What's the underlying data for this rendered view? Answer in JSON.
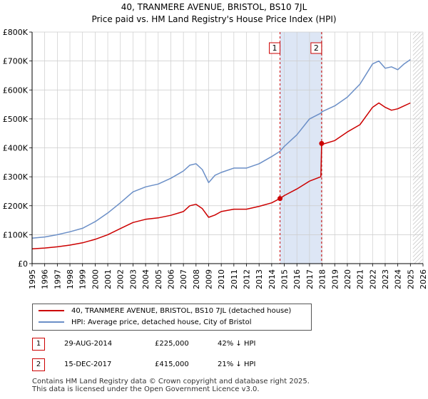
{
  "title_line1": "40, TRANMERE AVENUE, BRISTOL, BS10 7JL",
  "title_line2": "Price paid vs. HM Land Registry's House Price Index (HPI)",
  "colors": {
    "property": "#cc0000",
    "hpi": "#6b8fc7",
    "shade": "#dde6f5",
    "grid": "#cccccc",
    "forecast_hatch": "#aaaaaa"
  },
  "chart_data": {
    "type": "line",
    "y_tick_labels": [
      "£0",
      "£100K",
      "£200K",
      "£300K",
      "£400K",
      "£500K",
      "£600K",
      "£700K",
      "£800K"
    ],
    "x_tick_labels": [
      "1995",
      "1996",
      "1997",
      "1998",
      "1999",
      "2000",
      "2001",
      "2002",
      "2003",
      "2004",
      "2005",
      "2006",
      "2007",
      "2008",
      "2009",
      "2010",
      "2011",
      "2012",
      "2013",
      "2014",
      "2015",
      "2016",
      "2017",
      "2018",
      "2019",
      "2020",
      "2021",
      "2022",
      "2023",
      "2024",
      "2025",
      "2026"
    ],
    "xlim": [
      1995,
      2026
    ],
    "ylim": [
      0,
      800000
    ],
    "shaded_period": [
      2014.66,
      2017.96
    ],
    "forecast_from": 2025.2,
    "series": [
      {
        "name": "40, TRANMERE AVENUE, BRISTOL, BS10 7JL (detached house)",
        "x": [
          1995,
          1996,
          1997,
          1998,
          1999,
          2000,
          2001,
          2002,
          2003,
          2004,
          2005,
          2006,
          2007,
          2007.5,
          2008,
          2008.5,
          2009,
          2009.5,
          2010,
          2011,
          2012,
          2013,
          2014,
          2014.66,
          2015,
          2016,
          2017,
          2017.9,
          2017.96,
          2018,
          2019,
          2020,
          2021,
          2022,
          2022.5,
          2023,
          2023.5,
          2024,
          2024.5,
          2025
        ],
        "y": [
          51000,
          54000,
          58000,
          64000,
          72000,
          84000,
          100000,
          121000,
          142000,
          153000,
          158000,
          167000,
          180000,
          200000,
          205000,
          190000,
          160000,
          168000,
          180000,
          188000,
          188000,
          198000,
          210000,
          225000,
          235000,
          258000,
          285000,
          300000,
          415000,
          412000,
          425000,
          455000,
          480000,
          540000,
          555000,
          540000,
          530000,
          535000,
          545000,
          555000
        ]
      },
      {
        "name": "HPI: Average price, detached house, City of Bristol",
        "x": [
          1995,
          1996,
          1997,
          1998,
          1999,
          2000,
          2001,
          2002,
          2003,
          2004,
          2005,
          2006,
          2007,
          2007.5,
          2008,
          2008.5,
          2009,
          2009.5,
          2010,
          2011,
          2012,
          2013,
          2014,
          2014.66,
          2015,
          2016,
          2017,
          2017.9,
          2018,
          2019,
          2020,
          2021,
          2022,
          2022.5,
          2023,
          2023.5,
          2024,
          2024.5,
          2025
        ],
        "y": [
          88000,
          92000,
          100000,
          110000,
          122000,
          145000,
          175000,
          210000,
          248000,
          265000,
          275000,
          295000,
          320000,
          340000,
          345000,
          325000,
          280000,
          305000,
          315000,
          330000,
          330000,
          345000,
          370000,
          388000,
          405000,
          445000,
          500000,
          520000,
          525000,
          545000,
          575000,
          620000,
          690000,
          700000,
          675000,
          680000,
          670000,
          690000,
          705000
        ]
      }
    ]
  },
  "markers": [
    {
      "num": "1",
      "date": "29-AUG-2014",
      "price": "£225,000",
      "hpi": "42% ↓ HPI",
      "x": 2014.66,
      "value": 225000
    },
    {
      "num": "2",
      "date": "15-DEC-2017",
      "price": "£415,000",
      "hpi": "21% ↓ HPI",
      "x": 2017.96,
      "value": 415000
    }
  ],
  "legend": {
    "property": "40, TRANMERE AVENUE, BRISTOL, BS10 7JL (detached house)",
    "hpi": "HPI: Average price, detached house, City of Bristol"
  },
  "footer_line1": "Contains HM Land Registry data © Crown copyright and database right 2025.",
  "footer_line2": "This data is licensed under the Open Government Licence v3.0."
}
